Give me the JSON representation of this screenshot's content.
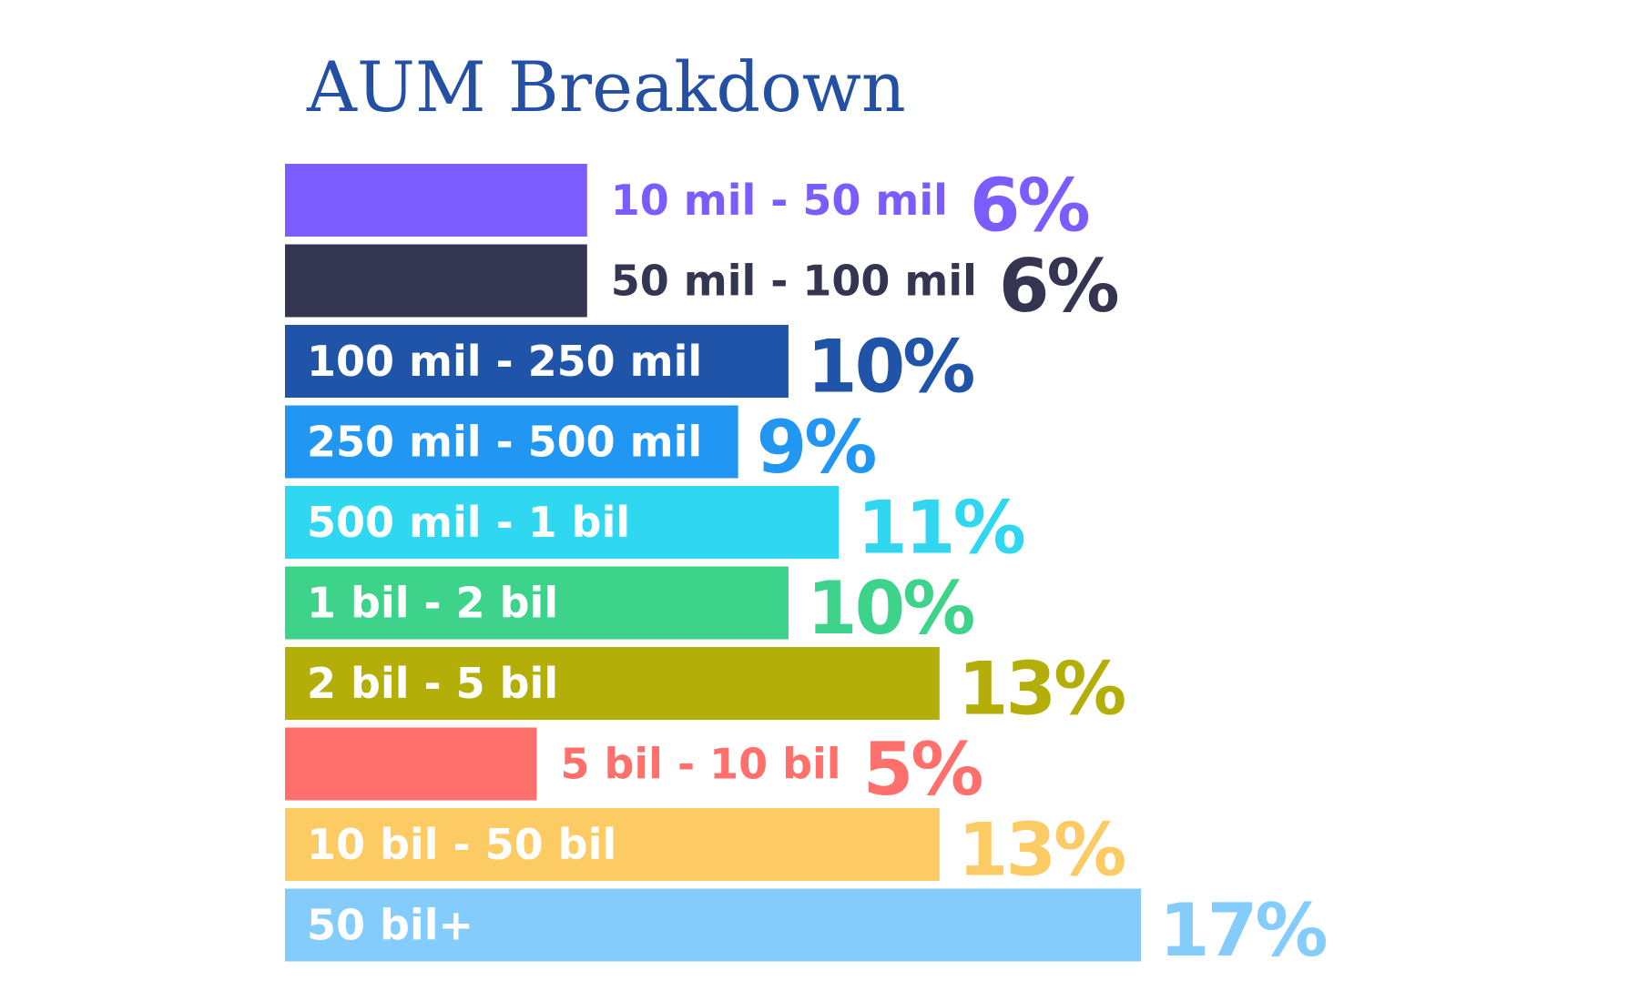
{
  "chart_data": {
    "type": "bar",
    "orientation": "horizontal",
    "title": "AUM Breakdown",
    "xlabel": "",
    "ylabel": "",
    "grid": false,
    "legend": "none",
    "categories": [
      "10 mil - 50 mil",
      "50 mil - 100 mil",
      "100 mil - 250 mil",
      "250 mil - 500 mil",
      "500 mil - 1 bil",
      "1 bil - 2 bil",
      "2 bil - 5 bil",
      "5 bil - 10 bil",
      "10 bil - 50 bil",
      "50 bil+"
    ],
    "values": [
      6,
      6,
      10,
      9,
      11,
      10,
      13,
      5,
      13,
      17
    ],
    "value_labels": [
      "6%",
      "6%",
      "10%",
      "9%",
      "11%",
      "10%",
      "13%",
      "5%",
      "13%",
      "17%"
    ],
    "label_inside_bar": [
      false,
      false,
      true,
      true,
      true,
      true,
      true,
      false,
      true,
      true
    ],
    "colors": [
      "#7b5cff",
      "#333551",
      "#1f54a8",
      "#2196f3",
      "#2fd8f0",
      "#3ed38a",
      "#b4ae08",
      "#ff6f6b",
      "#fdcb63",
      "#83ccfb"
    ],
    "xlim": [
      0,
      17
    ]
  }
}
